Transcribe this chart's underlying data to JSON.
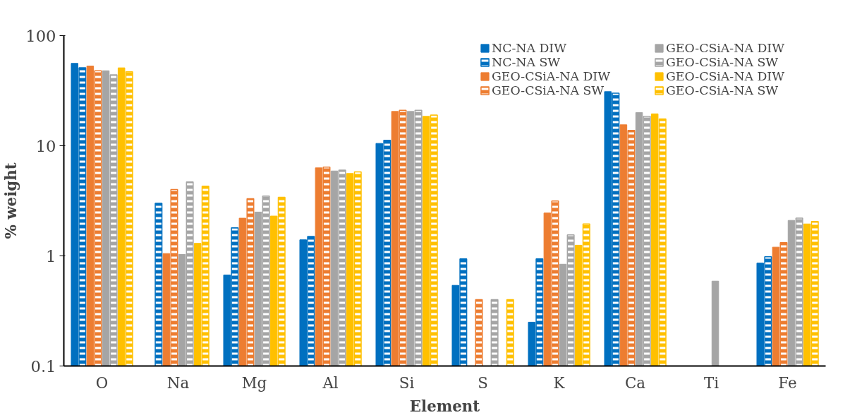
{
  "chart_data": {
    "type": "bar",
    "xlabel": "Element",
    "ylabel": "% weight",
    "categories": [
      "O",
      "Na",
      "Mg",
      "Al",
      "Si",
      "S",
      "K",
      "Ca",
      "Ti",
      "Fe"
    ],
    "log": "y",
    "ylim": [
      0.1,
      100
    ],
    "yticks": [
      0.1,
      1,
      10,
      100
    ],
    "grid": false,
    "legend": "top right",
    "series": [
      {
        "name": "NC-NA DIW",
        "color": "#0070c0",
        "values": [
          56,
          null,
          0.67,
          1.4,
          10.5,
          0.54,
          0.25,
          31,
          null,
          0.86
        ]
      },
      {
        "name": "NC-NA SW",
        "color": "#0070c0",
        "values": [
          51,
          3.0,
          1.8,
          1.5,
          11.2,
          0.94,
          0.94,
          30,
          null,
          0.98
        ]
      },
      {
        "name": "GEO-CSiA-NA DIW",
        "color": "#ed7d31",
        "values": [
          53,
          1.05,
          2.2,
          6.3,
          20.5,
          null,
          2.45,
          15.5,
          null,
          1.2
        ]
      },
      {
        "name": "GEO-CSiA-NA SW",
        "color": "#ed7d31",
        "values": [
          48,
          4.0,
          3.3,
          6.4,
          21,
          0.4,
          3.15,
          13.8,
          null,
          1.32
        ]
      },
      {
        "name": "GEO-CSiA-NA DIW",
        "color": "#a5a5a5",
        "values": [
          48,
          1.03,
          2.5,
          5.9,
          20.5,
          null,
          0.84,
          20,
          0.59,
          2.1
        ]
      },
      {
        "name": "GEO-CSiA-NA SW",
        "color": "#a5a5a5",
        "values": [
          44,
          4.7,
          3.5,
          6.0,
          21,
          0.4,
          1.55,
          18.5,
          null,
          2.2
        ]
      },
      {
        "name": "GEO-CSiA-NA DIW",
        "color": "#ffc000",
        "values": [
          51,
          1.3,
          2.3,
          5.6,
          18.5,
          null,
          1.25,
          19.5,
          null,
          1.95
        ]
      },
      {
        "name": "GEO-CSiA-NA SW",
        "color": "#ffc000",
        "values": [
          47,
          4.3,
          3.4,
          5.8,
          19,
          0.4,
          1.95,
          17.5,
          null,
          2.05
        ]
      }
    ]
  }
}
